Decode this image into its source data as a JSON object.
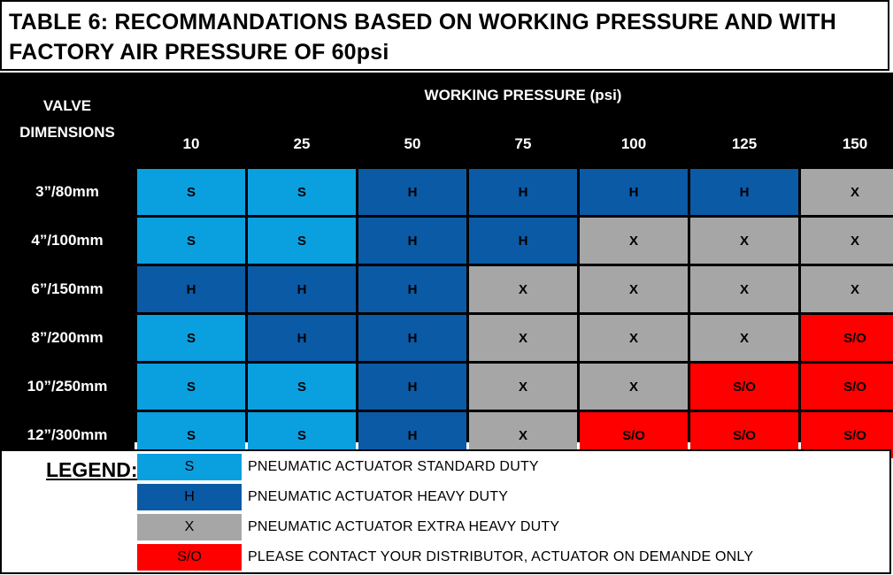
{
  "title": "TABLE 6: RECOMMANDATIONS BASED ON WORKING PRESSURE AND WITH FACTORY AIR PRESSURE OF 60psi",
  "header": {
    "valve_line1": "VALVE",
    "valve_line2": "DIMENSIONS",
    "working_pressure": "WORKING PRESSURE (psi)",
    "pressures": [
      "10",
      "25",
      "50",
      "75",
      "100",
      "125",
      "150"
    ]
  },
  "rows": [
    {
      "label": "3”/80mm",
      "cells": [
        "S",
        "S",
        "H",
        "H",
        "H",
        "H",
        "X"
      ]
    },
    {
      "label": "4”/100mm",
      "cells": [
        "S",
        "S",
        "H",
        "H",
        "X",
        "X",
        "X"
      ]
    },
    {
      "label": "6”/150mm",
      "cells": [
        "H",
        "H",
        "H",
        "X",
        "X",
        "X",
        "X"
      ]
    },
    {
      "label": "8”/200mm",
      "cells": [
        "S",
        "H",
        "H",
        "X",
        "X",
        "X",
        "S/O"
      ]
    },
    {
      "label": "10”/250mm",
      "cells": [
        "S",
        "S",
        "H",
        "X",
        "X",
        "S/O",
        "S/O"
      ]
    },
    {
      "label": "12”/300mm",
      "cells": [
        "S",
        "S",
        "H",
        "X",
        "S/O",
        "S/O",
        "S/O"
      ]
    }
  ],
  "colors": {
    "S": "#0aa0e0",
    "H": "#0a5aa6",
    "X": "#a6a6a6",
    "S/O": "#ff0000"
  },
  "legend": {
    "label": "LEGEND:",
    "items": [
      {
        "code": "S",
        "text": "PNEUMATIC ACTUATOR STANDARD DUTY"
      },
      {
        "code": "H",
        "text": "PNEUMATIC ACTUATOR HEAVY DUTY"
      },
      {
        "code": "X",
        "text": "PNEUMATIC ACTUATOR EXTRA HEAVY DUTY"
      },
      {
        "code": "S/O",
        "text": "PLEASE CONTACT YOUR DISTRIBUTOR, ACTUATOR ON DEMANDE ONLY"
      }
    ]
  }
}
